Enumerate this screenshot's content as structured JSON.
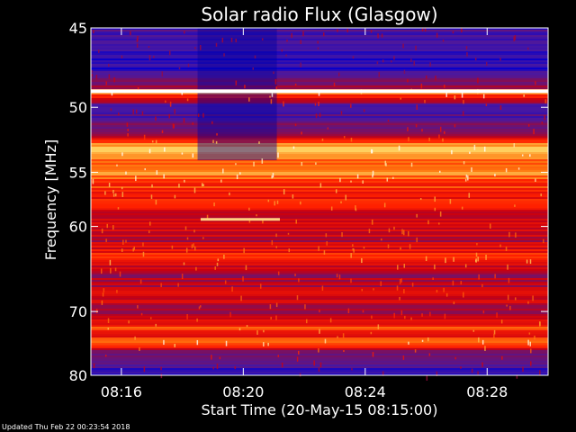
{
  "chart_data": {
    "type": "heatmap",
    "title": "Solar radio Flux (Glasgow)",
    "xlabel": "Start Time (20-May-15 08:15:00)",
    "ylabel": "Frequency [MHz]",
    "x_ticks": [
      "08:16",
      "08:20",
      "08:24",
      "08:28"
    ],
    "x_tick_minutes": [
      16,
      20,
      24,
      28
    ],
    "x_range_minutes": [
      15.0,
      30.0
    ],
    "y_ticks": [
      45,
      50,
      55,
      60,
      70,
      80
    ],
    "y_range": [
      45,
      80
    ],
    "y_scale": "reciprocal",
    "colormap": [
      "#0a00c8",
      "#4a18a0",
      "#7a1060",
      "#c80010",
      "#ff2000",
      "#ff7a10",
      "#ffd060",
      "#ffffff"
    ],
    "bands": [
      {
        "freq": 45.0,
        "level": 0.15
      },
      {
        "freq": 46.0,
        "level": 0.1
      },
      {
        "freq": 47.5,
        "level": 0.05
      },
      {
        "freq": 48.7,
        "level": 0.35
      },
      {
        "freq": 48.9,
        "level": 0.95
      },
      {
        "freq": 49.2,
        "level": 0.55
      },
      {
        "freq": 50.0,
        "level": 0.12
      },
      {
        "freq": 51.0,
        "level": 0.2
      },
      {
        "freq": 52.0,
        "level": 0.35
      },
      {
        "freq": 52.7,
        "level": 0.7
      },
      {
        "freq": 53.2,
        "level": 0.85
      },
      {
        "freq": 54.0,
        "level": 0.65
      },
      {
        "freq": 55.0,
        "level": 0.75
      },
      {
        "freq": 56.0,
        "level": 0.6
      },
      {
        "freq": 57.0,
        "level": 0.55
      },
      {
        "freq": 58.0,
        "level": 0.5
      },
      {
        "freq": 60.0,
        "level": 0.45
      },
      {
        "freq": 61.5,
        "level": 0.4
      },
      {
        "freq": 63.5,
        "level": 0.6
      },
      {
        "freq": 65.0,
        "level": 0.35
      },
      {
        "freq": 67.0,
        "level": 0.4
      },
      {
        "freq": 68.5,
        "level": 0.45
      },
      {
        "freq": 70.0,
        "level": 0.3
      },
      {
        "freq": 71.0,
        "level": 0.45
      },
      {
        "freq": 72.3,
        "level": 0.6
      },
      {
        "freq": 73.3,
        "level": 0.4
      },
      {
        "freq": 74.2,
        "level": 0.75
      },
      {
        "freq": 76.0,
        "level": 0.3
      },
      {
        "freq": 77.5,
        "level": 0.2
      },
      {
        "freq": 79.0,
        "level": 0.12
      },
      {
        "freq": 80.0,
        "level": 0.1
      }
    ],
    "dark_column_minutes": [
      18.5,
      21.1
    ],
    "bright_line": {
      "freq": 59.3,
      "start_minutes": 18.6,
      "end_minutes": 21.2
    }
  },
  "footer": {
    "updated": "Updated Thu Feb 22 00:23:54 2018"
  }
}
